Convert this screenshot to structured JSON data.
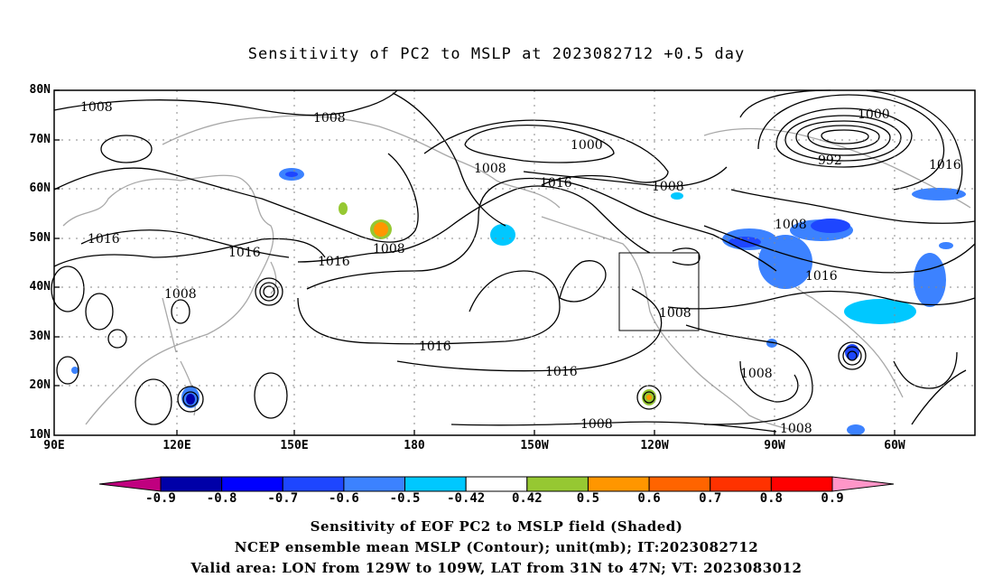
{
  "title": "Sensitivity of PC2 to MSLP at 2023082712 +0.5 day",
  "lat_labels": [
    "80N",
    "70N",
    "60N",
    "50N",
    "40N",
    "30N",
    "20N",
    "10N"
  ],
  "lon_labels": [
    "90E",
    "120E",
    "150E",
    "180",
    "150W",
    "120W",
    "90W",
    "60W"
  ],
  "contour_labels": [
    "1008",
    "1008",
    "1016",
    "1016",
    "1016",
    "1008",
    "1008",
    "1008",
    "1000",
    "1016",
    "1008",
    "1000",
    "992",
    "1016",
    "1008",
    "1016",
    "1008",
    "1016",
    "1016",
    "1008",
    "1008",
    "1008"
  ],
  "colorbar": {
    "labels": [
      "-0.9",
      "-0.8",
      "-0.7",
      "-0.6",
      "-0.5",
      "-0.42",
      "0.42",
      "0.5",
      "0.6",
      "0.7",
      "0.8",
      "0.9"
    ],
    "colors": [
      "#c0007f",
      "#0000a8",
      "#0000ff",
      "#1e46ff",
      "#3c82ff",
      "#00c8ff",
      "#ffffff",
      "#96c832",
      "#ff9600",
      "#ff6400",
      "#ff3200",
      "#ff0000",
      "#ff96c8"
    ]
  },
  "captions": [
    "Sensitivity of EOF PC2 to MSLP field (Shaded)",
    "NCEP ensemble mean MSLP (Contour); unit(mb); IT:2023082712",
    "Valid area: LON from 129W to 109W, LAT from 31N to 47N; VT: 2023083012"
  ]
}
